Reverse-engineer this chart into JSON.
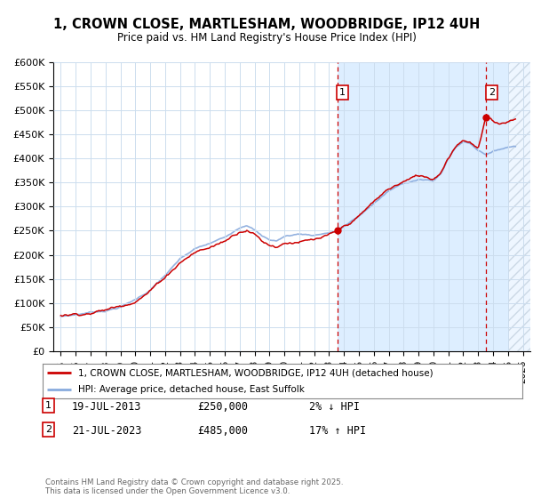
{
  "title": "1, CROWN CLOSE, MARTLESHAM, WOODBRIDGE, IP12 4UH",
  "subtitle": "Price paid vs. HM Land Registry's House Price Index (HPI)",
  "ylabel_ticks": [
    "£0",
    "£50K",
    "£100K",
    "£150K",
    "£200K",
    "£250K",
    "£300K",
    "£350K",
    "£400K",
    "£450K",
    "£500K",
    "£550K",
    "£600K"
  ],
  "ylim": [
    0,
    600000
  ],
  "xlim_start": 1994.5,
  "xlim_end": 2026.5,
  "background_color": "#ffffff",
  "grid_color": "#ccddee",
  "chart_bg_before": "#ffffff",
  "chart_bg_after": "#ddeeff",
  "hpi_line_color": "#88aadd",
  "price_line_color": "#cc0000",
  "transaction1_date": "19-JUL-2013",
  "transaction1_price": "£250,000",
  "transaction1_pct": "2% ↓ HPI",
  "transaction1_label": "1",
  "transaction1_x": 2013.54,
  "transaction1_y": 250000,
  "transaction2_date": "21-JUL-2023",
  "transaction2_price": "£485,000",
  "transaction2_pct": "17% ↑ HPI",
  "transaction2_label": "2",
  "transaction2_x": 2023.54,
  "transaction2_y": 485000,
  "legend_label_price": "1, CROWN CLOSE, MARTLESHAM, WOODBRIDGE, IP12 4UH (detached house)",
  "legend_label_hpi": "HPI: Average price, detached house, East Suffolk",
  "footer": "Contains HM Land Registry data © Crown copyright and database right 2025.\nThis data is licensed under the Open Government Licence v3.0.",
  "x_ticks": [
    1995,
    1996,
    1997,
    1998,
    1999,
    2000,
    2001,
    2002,
    2003,
    2004,
    2005,
    2006,
    2007,
    2008,
    2009,
    2010,
    2011,
    2012,
    2013,
    2014,
    2015,
    2016,
    2017,
    2018,
    2019,
    2020,
    2021,
    2022,
    2023,
    2024,
    2025,
    2026
  ]
}
